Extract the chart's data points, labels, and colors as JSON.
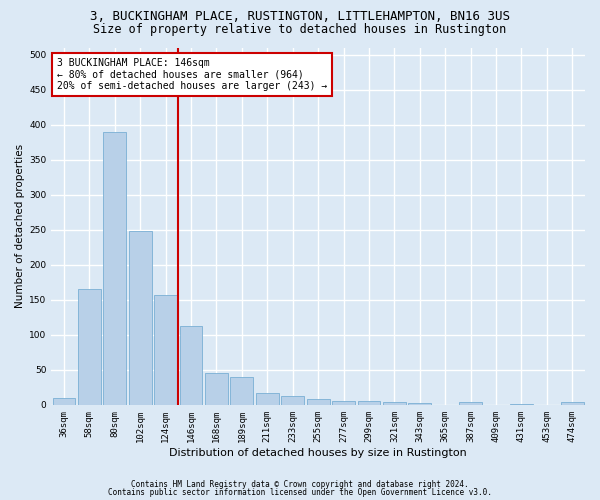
{
  "title1": "3, BUCKINGHAM PLACE, RUSTINGTON, LITTLEHAMPTON, BN16 3US",
  "title2": "Size of property relative to detached houses in Rustington",
  "xlabel": "Distribution of detached houses by size in Rustington",
  "ylabel": "Number of detached properties",
  "categories": [
    "36sqm",
    "58sqm",
    "80sqm",
    "102sqm",
    "124sqm",
    "146sqm",
    "168sqm",
    "189sqm",
    "211sqm",
    "233sqm",
    "255sqm",
    "277sqm",
    "299sqm",
    "321sqm",
    "343sqm",
    "365sqm",
    "387sqm",
    "409sqm",
    "431sqm",
    "453sqm",
    "474sqm"
  ],
  "values": [
    10,
    165,
    390,
    248,
    157,
    113,
    45,
    40,
    17,
    13,
    9,
    6,
    5,
    4,
    2,
    0,
    4,
    0,
    1,
    0,
    4
  ],
  "bar_color": "#b8d0e8",
  "bar_edge_color": "#7aafd4",
  "vline_color": "#cc0000",
  "ylim": [
    0,
    510
  ],
  "yticks": [
    0,
    50,
    100,
    150,
    200,
    250,
    300,
    350,
    400,
    450,
    500
  ],
  "annotation_text": "3 BUCKINGHAM PLACE: 146sqm\n← 80% of detached houses are smaller (964)\n20% of semi-detached houses are larger (243) →",
  "annotation_box_color": "#ffffff",
  "annotation_box_edge": "#cc0000",
  "footer1": "Contains HM Land Registry data © Crown copyright and database right 2024.",
  "footer2": "Contains public sector information licensed under the Open Government Licence v3.0.",
  "bg_color": "#dce9f5",
  "plot_bg_color": "#dce9f5",
  "grid_color": "#ffffff",
  "title1_fontsize": 9,
  "title2_fontsize": 8.5,
  "ylabel_fontsize": 7.5,
  "xlabel_fontsize": 8,
  "tick_fontsize": 6.5,
  "ann_fontsize": 7,
  "footer_fontsize": 5.5
}
